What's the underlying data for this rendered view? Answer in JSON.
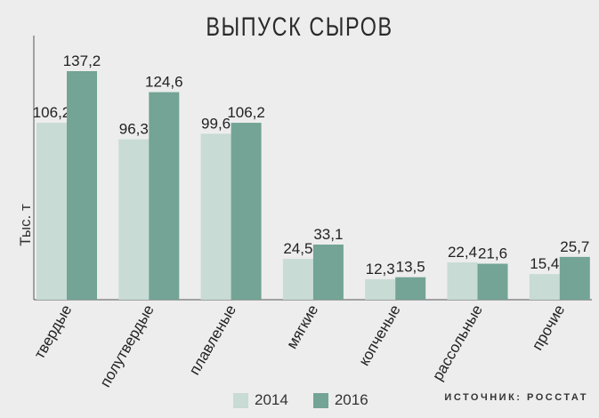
{
  "chart_data": {
    "type": "bar",
    "title": "ВЫПУСК СЫРОВ",
    "ylabel": "Тыс. т",
    "ylim": [
      0,
      140
    ],
    "grid": false,
    "legend": "bottom",
    "categories": [
      "твердые",
      "полутвердые",
      "плавленые",
      "мягкие",
      "копченые",
      "рассольные",
      "прочие"
    ],
    "series": [
      {
        "name": "2014",
        "values": [
          106.2,
          96.3,
          99.6,
          24.5,
          12.3,
          22.4,
          15.4
        ],
        "labels": [
          "106,2",
          "96,3",
          "99,6",
          "24,5",
          "12,3",
          "22,4",
          "15,4"
        ],
        "color": "#c8dbd5"
      },
      {
        "name": "2016",
        "values": [
          137.2,
          124.6,
          106.2,
          33.1,
          13.5,
          21.6,
          25.7
        ],
        "labels": [
          "137,2",
          "124,6",
          "106,2",
          "33,1",
          "13,5",
          "21,6",
          "25,7"
        ],
        "color": "#73a495"
      }
    ]
  },
  "source": "ИСТОЧНИК: РОССТАТ"
}
